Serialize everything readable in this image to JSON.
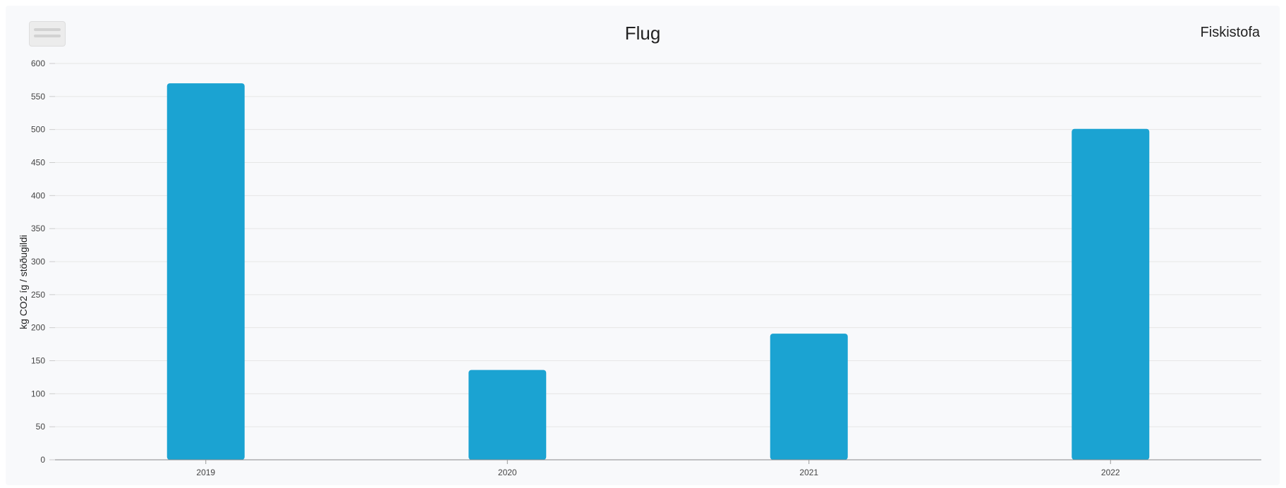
{
  "header": {
    "title": "Flug",
    "organization": "Fiskistofa",
    "menu_icon": "hamburger-menu-icon"
  },
  "colors": {
    "bar": "#1ba3d2",
    "grid": "#e6e6e6",
    "axis": "#888888",
    "background": "#f8f9fb"
  },
  "chart_data": {
    "type": "bar",
    "title": "Flug",
    "categories": [
      "2019",
      "2020",
      "2021",
      "2022"
    ],
    "series": [
      {
        "values": [
          570,
          136,
          191,
          501
        ]
      }
    ],
    "xlabel": "",
    "ylabel": "kg CO2 íg / stöðugildi",
    "ylim": [
      0,
      600
    ],
    "yticks": [
      0,
      50,
      100,
      150,
      200,
      250,
      300,
      350,
      400,
      450,
      500,
      550,
      600
    ],
    "grid": true,
    "legend": "none"
  }
}
